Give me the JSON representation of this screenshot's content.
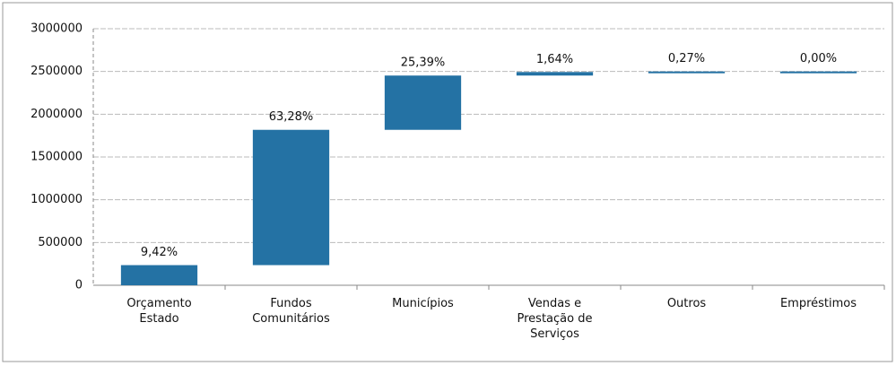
{
  "chart_data": {
    "type": "waterfall",
    "categories": [
      "Orçamento Estado",
      "Fundos Comunitários",
      "Municípios",
      "Vendas e Prestação de Serviços",
      "Outros",
      "Empréstimos"
    ],
    "values": [
      235500,
      1582000,
      634750,
      41000,
      6750,
      0
    ],
    "value_labels": [
      "9,42%",
      "63,28%",
      "25,39%",
      "1,64%",
      "0,27%",
      "0,00%"
    ],
    "color": "#2472a4",
    "ylim": [
      0,
      3000000
    ],
    "yticks": [
      0,
      500000,
      1000000,
      1500000,
      2000000,
      2500000,
      3000000
    ],
    "grid": true
  }
}
